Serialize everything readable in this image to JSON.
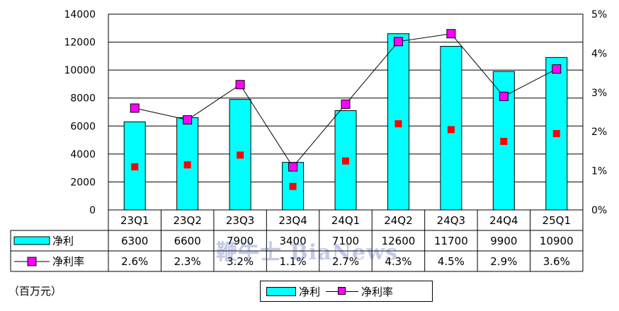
{
  "chart_data": {
    "type": "bar",
    "categories": [
      "23Q1",
      "23Q2",
      "23Q3",
      "23Q4",
      "24Q1",
      "24Q2",
      "24Q3",
      "24Q4",
      "25Q1"
    ],
    "series": [
      {
        "name": "净利",
        "type": "bar",
        "axis": "left",
        "color": "#00ffff",
        "values": [
          6300,
          6600,
          7900,
          3400,
          7100,
          12600,
          11700,
          9900,
          10900
        ],
        "labels": [
          "6300",
          "6600",
          "7900",
          "3400",
          "7100",
          "12600",
          "11700",
          "9900",
          "10900"
        ]
      },
      {
        "name": "净利率",
        "type": "line",
        "axis": "right",
        "color": "#ff00ff",
        "values": [
          2.6,
          2.3,
          3.2,
          1.1,
          2.7,
          4.3,
          4.5,
          2.9,
          3.6
        ],
        "labels": [
          "2.6%",
          "2.3%",
          "3.2%",
          "1.1%",
          "2.7%",
          "4.3%",
          "4.5%",
          "2.9%",
          "3.6%"
        ]
      }
    ],
    "secondary_markers": {
      "color": "#ff0000",
      "values": [
        1.1,
        1.15,
        1.4,
        0.6,
        1.25,
        2.2,
        2.05,
        1.75,
        1.95
      ]
    },
    "ylim": [
      0,
      14000
    ],
    "y_ticks": [
      "0",
      "2000",
      "4000",
      "6000",
      "8000",
      "10000",
      "12000",
      "14000"
    ],
    "y2lim": [
      0,
      5
    ],
    "y2_ticks": [
      "0%",
      "1%",
      "2%",
      "3%",
      "4%",
      "5%"
    ],
    "grid": true,
    "legend_position": "bottom-center",
    "data_table": true,
    "unit_note": "（百万元）"
  },
  "watermark": "鞭牛士 BiaNews"
}
